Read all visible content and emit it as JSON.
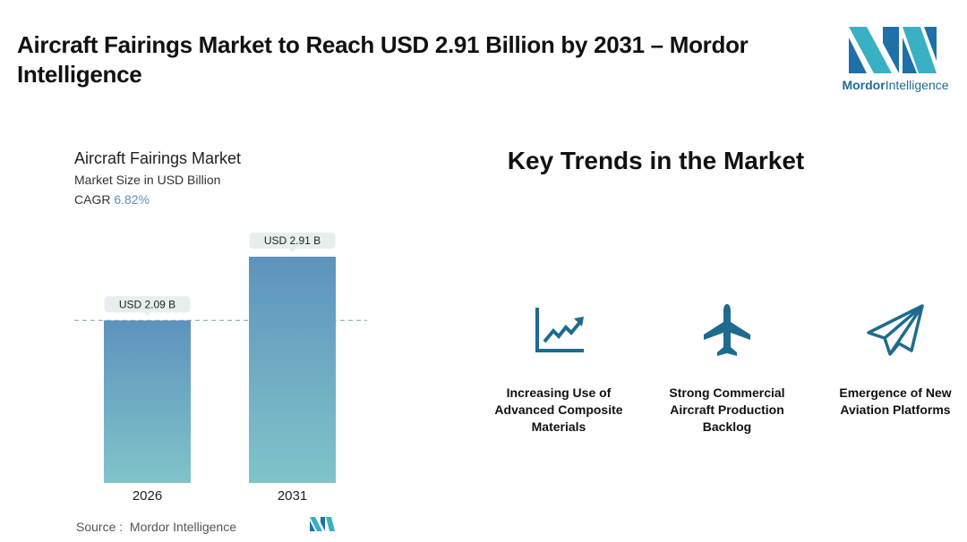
{
  "header": {
    "title": "Aircraft Fairings Market to Reach USD 2.91 Billion by 2031 – Mordor Intelligence",
    "logo": {
      "brand": "Mordor",
      "suffix": "Intelligence"
    }
  },
  "chart_data": {
    "type": "bar",
    "title": "Aircraft Fairings Market",
    "subtitle": "Market Size in USD Billion",
    "cagr": {
      "label": "CAGR",
      "value": "6.82%"
    },
    "categories": [
      "2026",
      "2031"
    ],
    "values": [
      2.09,
      2.91
    ],
    "value_labels": [
      "USD 2.09 B",
      "USD 2.91 B"
    ],
    "gradient": [
      "#5e93bd",
      "#80c4c9"
    ],
    "source": {
      "label": "Source :",
      "name": "Mordor Intelligence"
    }
  },
  "trends": {
    "title": "Key Trends in the Market",
    "items": [
      "Increasing Use of Advanced Composite Materials",
      "Strong Commercial Aircraft Production Backlog",
      "Emergence of New Aviation Platforms"
    ]
  }
}
